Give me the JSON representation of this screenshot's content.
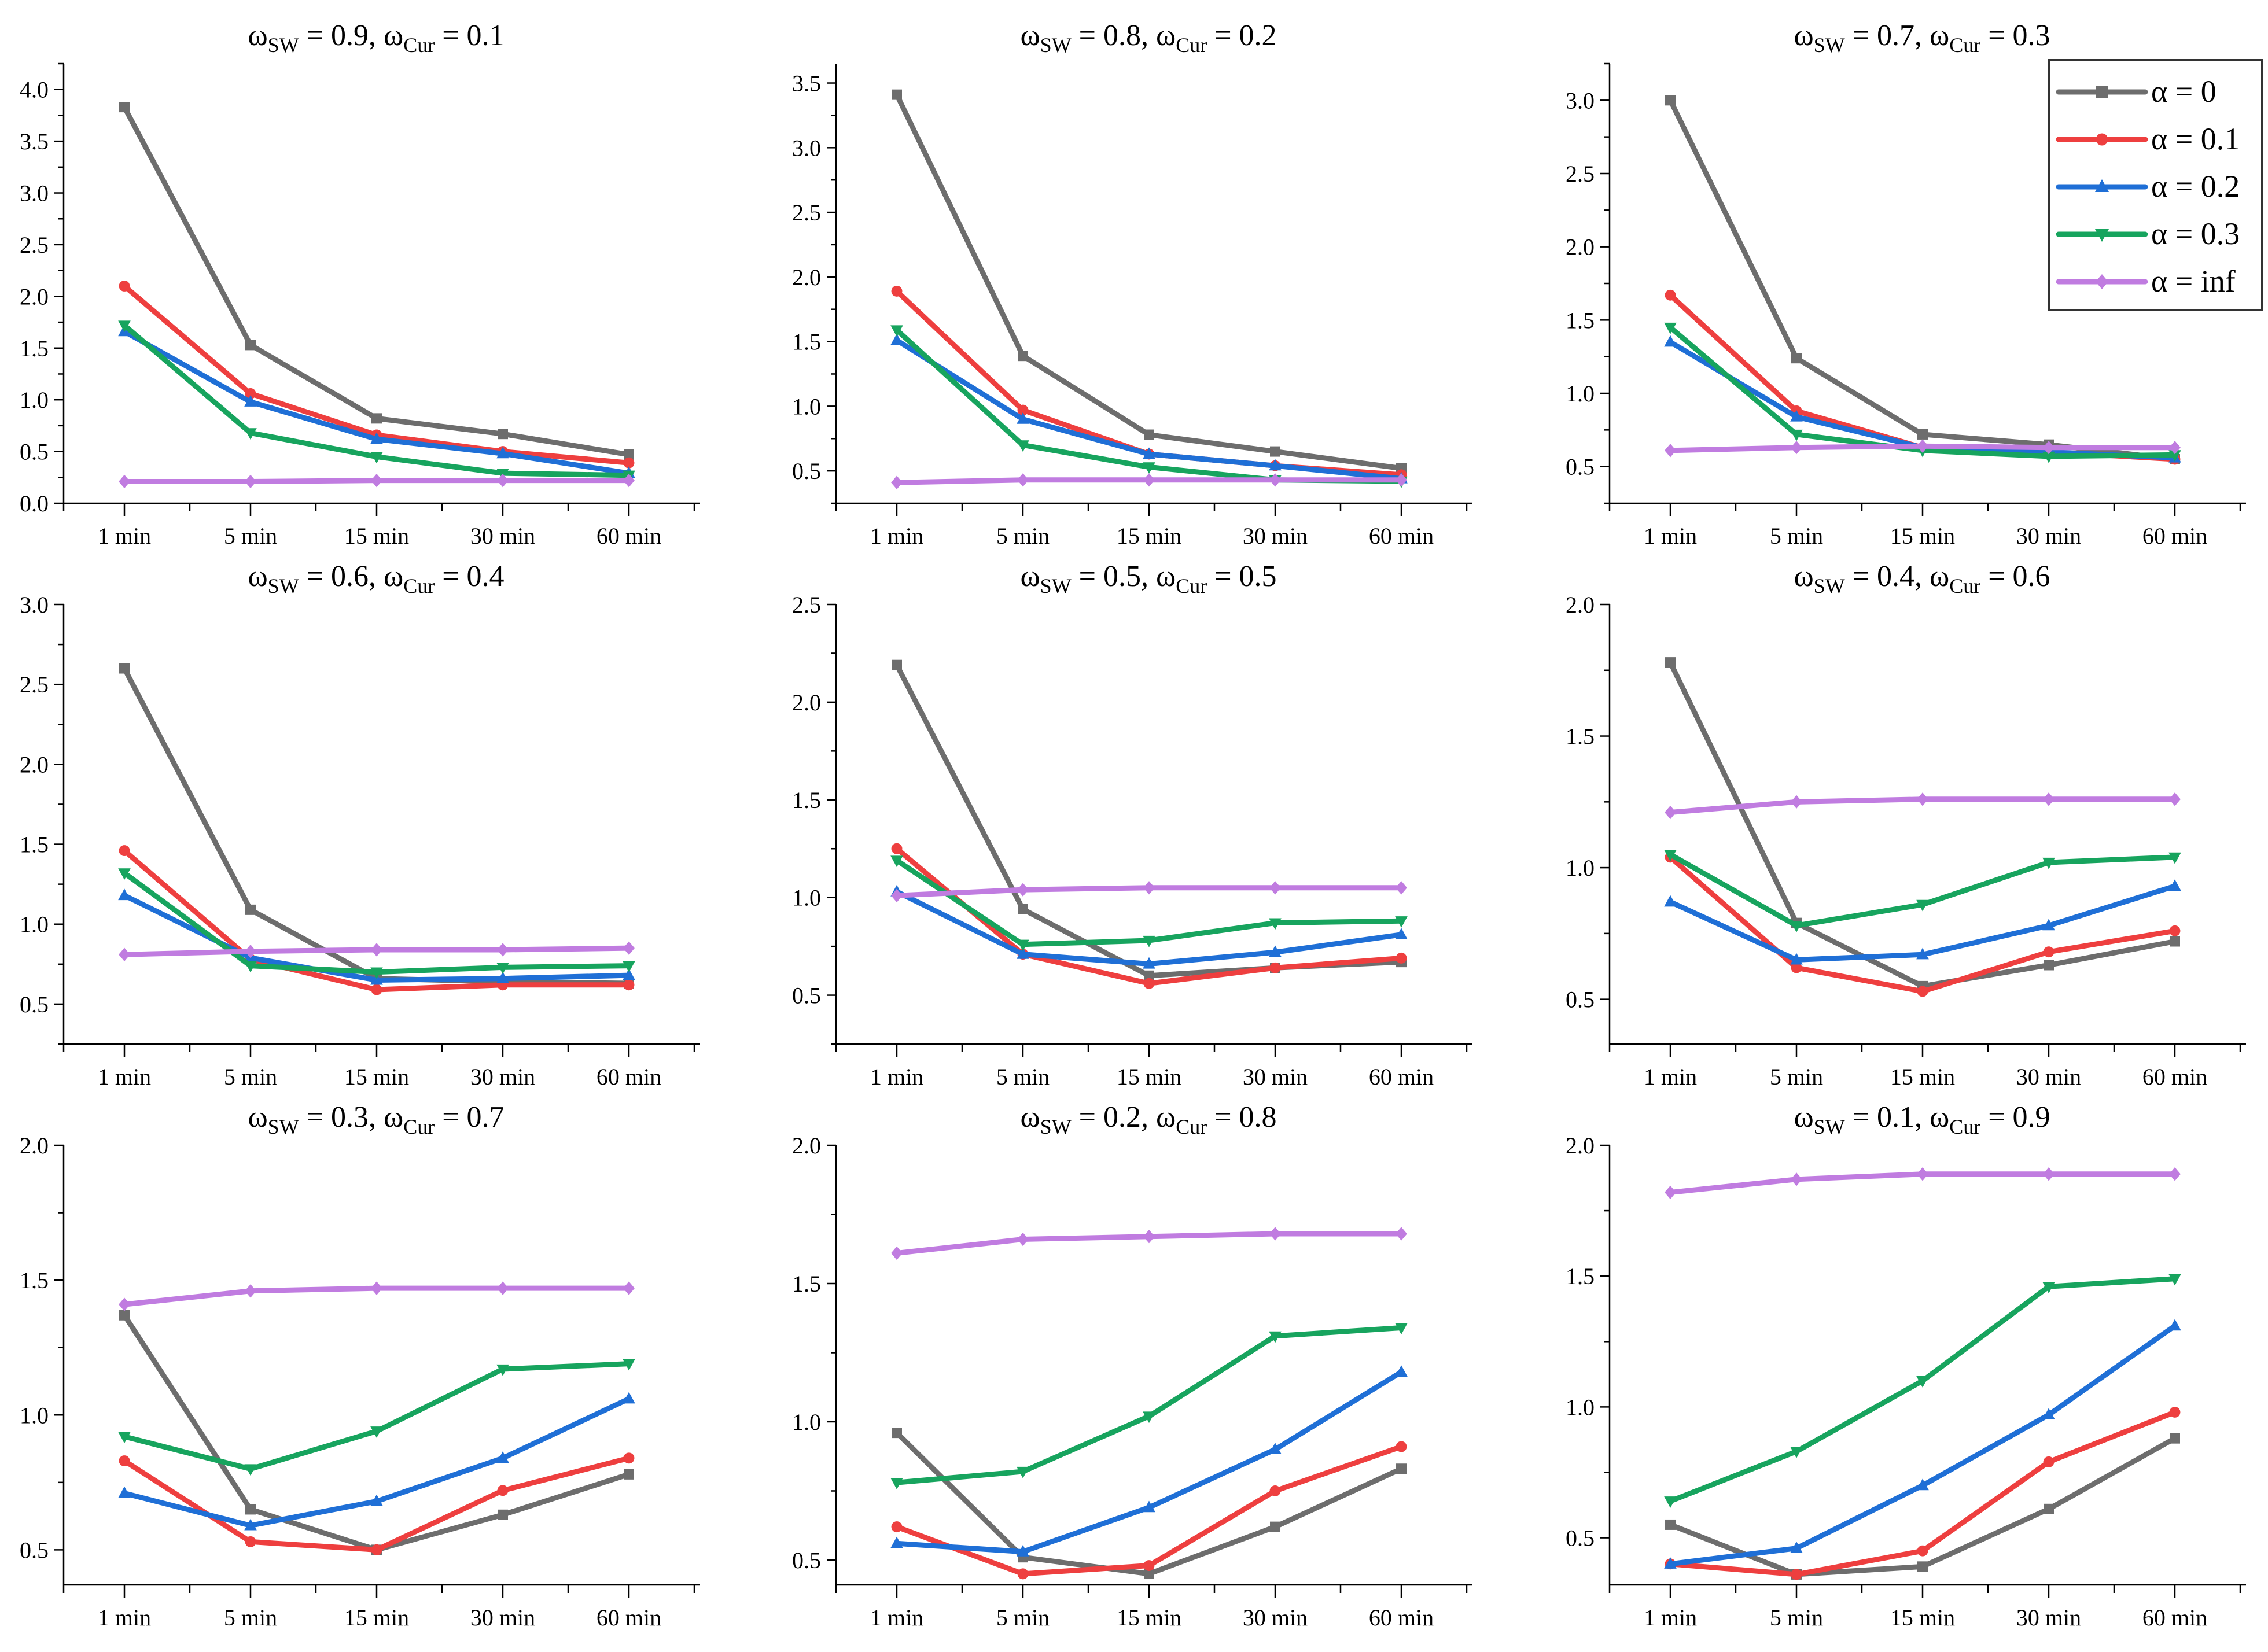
{
  "colors": {
    "alpha_0": "#6d6d6d",
    "alpha_0_1": "#ee3f3f",
    "alpha_0_2": "#1f6fd6",
    "alpha_0_3": "#17a45e",
    "alpha_inf": "#c07ce0"
  },
  "legend": {
    "items": [
      {
        "label": "α = 0",
        "marker": "square",
        "color": "#6d6d6d"
      },
      {
        "label": "α = 0.1",
        "marker": "circle",
        "color": "#ee3f3f"
      },
      {
        "label": "α = 0.2",
        "marker": "triangle-up",
        "color": "#1f6fd6"
      },
      {
        "label": "α = 0.3",
        "marker": "triangle-down",
        "color": "#17a45e"
      },
      {
        "label": "α = inf",
        "marker": "diamond",
        "color": "#c07ce0"
      }
    ]
  },
  "chart_data": [
    {
      "type": "line",
      "title": {
        "w": "ω",
        "sub1": "SW",
        "mid": " = 0.9, ω",
        "sub2": "Cur",
        "end": " = 0.1"
      },
      "categories": [
        "1 min",
        "5 min",
        "15 min",
        "30 min",
        "60 min"
      ],
      "ylim": [
        0,
        4.25
      ],
      "yticks": [
        "0.0",
        "0.5",
        "1.0",
        "1.5",
        "2.0",
        "2.5",
        "3.0",
        "3.5",
        "4.0"
      ],
      "series": [
        {
          "name": "α = 0",
          "values": [
            3.83,
            1.53,
            0.82,
            0.67,
            0.47
          ]
        },
        {
          "name": "α = 0.1",
          "values": [
            2.1,
            1.06,
            0.66,
            0.5,
            0.39
          ]
        },
        {
          "name": "α = 0.2",
          "values": [
            1.66,
            0.98,
            0.62,
            0.48,
            0.29
          ]
        },
        {
          "name": "α = 0.3",
          "values": [
            1.72,
            0.68,
            0.45,
            0.29,
            0.27
          ]
        },
        {
          "name": "α = inf",
          "values": [
            0.21,
            0.21,
            0.22,
            0.22,
            0.22
          ]
        }
      ]
    },
    {
      "type": "line",
      "title": {
        "w": "ω",
        "sub1": "SW",
        "mid": " = 0.8, ω",
        "sub2": "Cur",
        "end": " = 0.2"
      },
      "categories": [
        "1 min",
        "5 min",
        "15 min",
        "30 min",
        "60 min"
      ],
      "ylim": [
        0.25,
        3.65
      ],
      "yticks": [
        "0.5",
        "1.0",
        "1.5",
        "2.0",
        "2.5",
        "3.0",
        "3.5"
      ],
      "series": [
        {
          "name": "α = 0",
          "values": [
            3.41,
            1.39,
            0.78,
            0.65,
            0.52
          ]
        },
        {
          "name": "α = 0.1",
          "values": [
            1.89,
            0.97,
            0.63,
            0.54,
            0.47
          ]
        },
        {
          "name": "α = 0.2",
          "values": [
            1.51,
            0.9,
            0.63,
            0.54,
            0.44
          ]
        },
        {
          "name": "α = 0.3",
          "values": [
            1.59,
            0.7,
            0.53,
            0.43,
            0.42
          ]
        },
        {
          "name": "α = inf",
          "values": [
            0.41,
            0.43,
            0.43,
            0.43,
            0.43
          ]
        }
      ]
    },
    {
      "type": "line",
      "title": {
        "w": "ω",
        "sub1": "SW",
        "mid": " = 0.7, ω",
        "sub2": "Cur",
        "end": " = 0.3"
      },
      "categories": [
        "1 min",
        "5 min",
        "15 min",
        "30 min",
        "60 min"
      ],
      "ylim": [
        0.25,
        3.25
      ],
      "yticks": [
        "0.5",
        "1.0",
        "1.5",
        "2.0",
        "2.5",
        "3.0"
      ],
      "series": [
        {
          "name": "α = 0",
          "values": [
            3.0,
            1.24,
            0.72,
            0.65,
            0.55
          ]
        },
        {
          "name": "α = 0.1",
          "values": [
            1.67,
            0.88,
            0.63,
            0.6,
            0.55
          ]
        },
        {
          "name": "α = 0.2",
          "values": [
            1.35,
            0.84,
            0.63,
            0.6,
            0.56
          ]
        },
        {
          "name": "α = 0.3",
          "values": [
            1.45,
            0.72,
            0.61,
            0.57,
            0.58
          ]
        },
        {
          "name": "α = inf",
          "values": [
            0.61,
            0.63,
            0.64,
            0.63,
            0.63
          ]
        }
      ]
    },
    {
      "type": "line",
      "title": {
        "w": "ω",
        "sub1": "SW",
        "mid": " = 0.6, ω",
        "sub2": "Cur",
        "end": " = 0.4"
      },
      "categories": [
        "1 min",
        "5 min",
        "15 min",
        "30 min",
        "60 min"
      ],
      "ylim": [
        0.25,
        3.0
      ],
      "yticks": [
        "0.5",
        "1.0",
        "1.5",
        "2.0",
        "2.5",
        "3.0"
      ],
      "series": [
        {
          "name": "α = 0",
          "values": [
            2.6,
            1.09,
            0.66,
            0.64,
            0.63
          ]
        },
        {
          "name": "α = 0.1",
          "values": [
            1.46,
            0.78,
            0.59,
            0.62,
            0.62
          ]
        },
        {
          "name": "α = 0.2",
          "values": [
            1.18,
            0.79,
            0.65,
            0.66,
            0.68
          ]
        },
        {
          "name": "α = 0.3",
          "values": [
            1.32,
            0.74,
            0.7,
            0.73,
            0.74
          ]
        },
        {
          "name": "α = inf",
          "values": [
            0.81,
            0.83,
            0.84,
            0.84,
            0.85
          ]
        }
      ]
    },
    {
      "type": "line",
      "title": {
        "w": "ω",
        "sub1": "SW",
        "mid": " = 0.5, ω",
        "sub2": "Cur",
        "end": " = 0.5"
      },
      "categories": [
        "1 min",
        "5 min",
        "15 min",
        "30 min",
        "60 min"
      ],
      "ylim": [
        0.25,
        2.5
      ],
      "yticks": [
        "0.5",
        "1.0",
        "1.5",
        "2.0",
        "2.5"
      ],
      "series": [
        {
          "name": "α = 0",
          "values": [
            2.19,
            0.94,
            0.6,
            0.64,
            0.67
          ]
        },
        {
          "name": "α = 0.1",
          "values": [
            1.25,
            0.71,
            0.56,
            0.64,
            0.69
          ]
        },
        {
          "name": "α = 0.2",
          "values": [
            1.03,
            0.71,
            0.66,
            0.72,
            0.81
          ]
        },
        {
          "name": "α = 0.3",
          "values": [
            1.19,
            0.76,
            0.78,
            0.87,
            0.88
          ]
        },
        {
          "name": "α = inf",
          "values": [
            1.01,
            1.04,
            1.05,
            1.05,
            1.05
          ]
        }
      ]
    },
    {
      "type": "line",
      "title": {
        "w": "ω",
        "sub1": "SW",
        "mid": " = 0.4, ω",
        "sub2": "Cur",
        "end": " = 0.6"
      },
      "categories": [
        "1 min",
        "5 min",
        "15 min",
        "30 min",
        "60 min"
      ],
      "ylim": [
        0.33,
        2.0
      ],
      "yticks": [
        "0.5",
        "1.0",
        "1.5",
        "2.0"
      ],
      "series": [
        {
          "name": "α = 0",
          "values": [
            1.78,
            0.79,
            0.55,
            0.63,
            0.72
          ]
        },
        {
          "name": "α = 0.1",
          "values": [
            1.04,
            0.62,
            0.53,
            0.68,
            0.76
          ]
        },
        {
          "name": "α = 0.2",
          "values": [
            0.87,
            0.65,
            0.67,
            0.78,
            0.93
          ]
        },
        {
          "name": "α = 0.3",
          "values": [
            1.05,
            0.78,
            0.86,
            1.02,
            1.04
          ]
        },
        {
          "name": "α = inf",
          "values": [
            1.21,
            1.25,
            1.26,
            1.26,
            1.26
          ]
        }
      ]
    },
    {
      "type": "line",
      "title": {
        "w": "ω",
        "sub1": "SW",
        "mid": " = 0.3, ω",
        "sub2": "Cur",
        "end": " = 0.7"
      },
      "categories": [
        "1 min",
        "5 min",
        "15 min",
        "30 min",
        "60 min"
      ],
      "ylim": [
        0.37,
        2.0
      ],
      "yticks": [
        "0.5",
        "1.0",
        "1.5",
        "2.0"
      ],
      "series": [
        {
          "name": "α = 0",
          "values": [
            1.37,
            0.65,
            0.5,
            0.63,
            0.78
          ]
        },
        {
          "name": "α = 0.1",
          "values": [
            0.83,
            0.53,
            0.5,
            0.72,
            0.84
          ]
        },
        {
          "name": "α = 0.2",
          "values": [
            0.71,
            0.59,
            0.68,
            0.84,
            1.06
          ]
        },
        {
          "name": "α = 0.3",
          "values": [
            0.92,
            0.8,
            0.94,
            1.17,
            1.19
          ]
        },
        {
          "name": "α = inf",
          "values": [
            1.41,
            1.46,
            1.47,
            1.47,
            1.47
          ]
        }
      ]
    },
    {
      "type": "line",
      "title": {
        "w": "ω",
        "sub1": "SW",
        "mid": " = 0.2, ω",
        "sub2": "Cur",
        "end": " = 0.8"
      },
      "categories": [
        "1 min",
        "5 min",
        "15 min",
        "30 min",
        "60 min"
      ],
      "ylim": [
        0.41,
        2.0
      ],
      "yticks": [
        "0.5",
        "1.0",
        "1.5",
        "2.0"
      ],
      "series": [
        {
          "name": "α = 0",
          "values": [
            0.96,
            0.51,
            0.45,
            0.62,
            0.83
          ]
        },
        {
          "name": "α = 0.1",
          "values": [
            0.62,
            0.45,
            0.48,
            0.75,
            0.91
          ]
        },
        {
          "name": "α = 0.2",
          "values": [
            0.56,
            0.53,
            0.69,
            0.9,
            1.18
          ]
        },
        {
          "name": "α = 0.3",
          "values": [
            0.78,
            0.82,
            1.02,
            1.31,
            1.34
          ]
        },
        {
          "name": "α = inf",
          "values": [
            1.61,
            1.66,
            1.67,
            1.68,
            1.68
          ]
        }
      ]
    },
    {
      "type": "line",
      "title": {
        "w": "ω",
        "sub1": "SW",
        "mid": " = 0.1, ω",
        "sub2": "Cur",
        "end": " = 0.9"
      },
      "categories": [
        "1 min",
        "5 min",
        "15 min",
        "30 min",
        "60 min"
      ],
      "ylim": [
        0.32,
        2.0
      ],
      "yticks": [
        "0.5",
        "1.0",
        "1.5",
        "2.0"
      ],
      "series": [
        {
          "name": "α = 0",
          "values": [
            0.55,
            0.36,
            0.39,
            0.61,
            0.88
          ]
        },
        {
          "name": "α = 0.1",
          "values": [
            0.4,
            0.36,
            0.45,
            0.79,
            0.98
          ]
        },
        {
          "name": "α = 0.2",
          "values": [
            0.4,
            0.46,
            0.7,
            0.97,
            1.31
          ]
        },
        {
          "name": "α = 0.3",
          "values": [
            0.64,
            0.83,
            1.1,
            1.46,
            1.49
          ]
        },
        {
          "name": "α = inf",
          "values": [
            1.82,
            1.87,
            1.89,
            1.89,
            1.89
          ]
        }
      ]
    }
  ]
}
